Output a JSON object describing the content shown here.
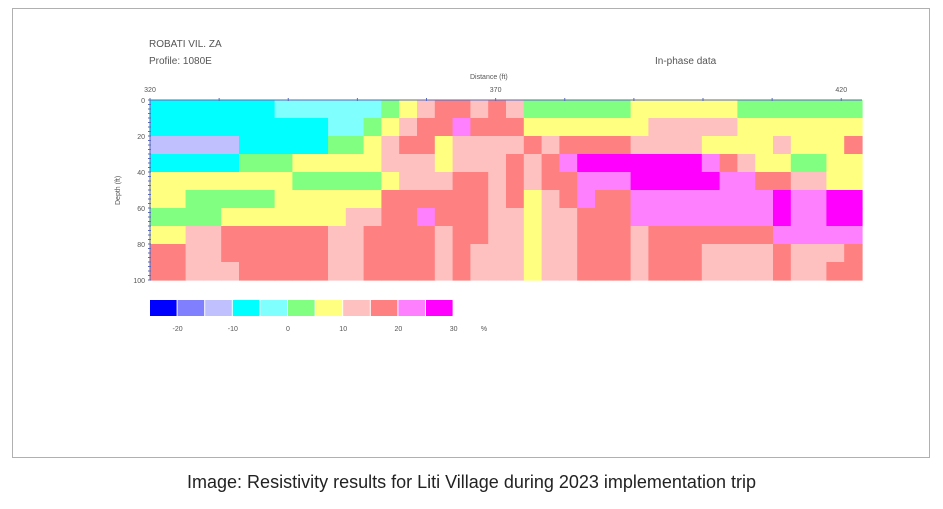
{
  "chart_data": {
    "type": "heatmap",
    "title": "ROBATI VIL. ZA",
    "subtitle": "Profile: 1080E",
    "annotation": "In-phase data",
    "xlabel": "Distance (ft)",
    "ylabel": "Depth (ft)",
    "xlim": [
      320,
      423
    ],
    "ylim": [
      0,
      100
    ],
    "x_tick_labels": [
      "320",
      "370",
      "420"
    ],
    "x_ticks": [
      320,
      370,
      420
    ],
    "y_tick_labels": [
      "0",
      "20",
      "40",
      "60",
      "80",
      "100"
    ],
    "y_ticks": [
      0,
      20,
      40,
      60,
      80,
      100
    ],
    "colorbar": {
      "unit": "%",
      "tick_labels": [
        "-20",
        "-10",
        "0",
        "10",
        "20",
        "30"
      ],
      "classes": [
        {
          "code": "B",
          "range": [
            -25,
            -20
          ],
          "color": "#0000ff"
        },
        {
          "code": "D",
          "range": [
            -20,
            -15
          ],
          "color": "#8080ff"
        },
        {
          "code": "V",
          "range": [
            -15,
            -10
          ],
          "color": "#c0c0ff"
        },
        {
          "code": "C",
          "range": [
            -10,
            -5
          ],
          "color": "#00ffff"
        },
        {
          "code": "L",
          "range": [
            -5,
            0
          ],
          "color": "#80ffff"
        },
        {
          "code": "G",
          "range": [
            0,
            5
          ],
          "color": "#80ff80"
        },
        {
          "code": "Y",
          "range": [
            5,
            10
          ],
          "color": "#ffff80"
        },
        {
          "code": "P",
          "range": [
            10,
            15
          ],
          "color": "#ffc0c0"
        },
        {
          "code": "S",
          "range": [
            15,
            20
          ],
          "color": "#ff8080"
        },
        {
          "code": "M",
          "range": [
            20,
            25
          ],
          "color": "#ff80ff"
        },
        {
          "code": "X",
          "range": [
            25,
            30
          ],
          "color": "#ff00ff"
        }
      ]
    },
    "grid_note": "rows = depth bands of 10 ft (0-100), columns = equal distance steps from 320 to 423 ft; each char is a class code",
    "z_classes": [
      "CCCCCCCLLLLLLGYPSSPSPGGGGGGYYYYYYGGGGGGG",
      "CCCCCCCCCCLLGYPSSMSSSYYYYYYYPPPPPYYYYYYY",
      "VVVVVCCCCCGGYPSSYPPPPSPSSSSPPPPYYYYPYYYS",
      "CCCCCGGGYYYYYPPPYPPPSPSMXXXXXXXMSPYYGGYY",
      "YYYYYYYYGGGGGYPPPSSPSPSSMMMXXXXXMMSSPPYY",
      "YYGGGGGYYYYYYSSSSSSPSYPSMSSMMMMMMMMXMMXX",
      "GGGGYYYYYYYPPSSMSSSPPYPPSSSMMMMMMMMXMMXX",
      "YYPPSSSSSSPPSSSSPSSPPYPPSSSPSSSSSSSMMMMM",
      "SSPPSSSSSSPPSSSSPSPPPYPPSSSPSSSPPPPSPPPS",
      "SSPPPSSSSSPPSSSSPSPPPYPPSSSPSSSPPPPSPPSS"
    ]
  },
  "caption": "Image: Resistivity results for Liti Village during 2023 implementation trip"
}
